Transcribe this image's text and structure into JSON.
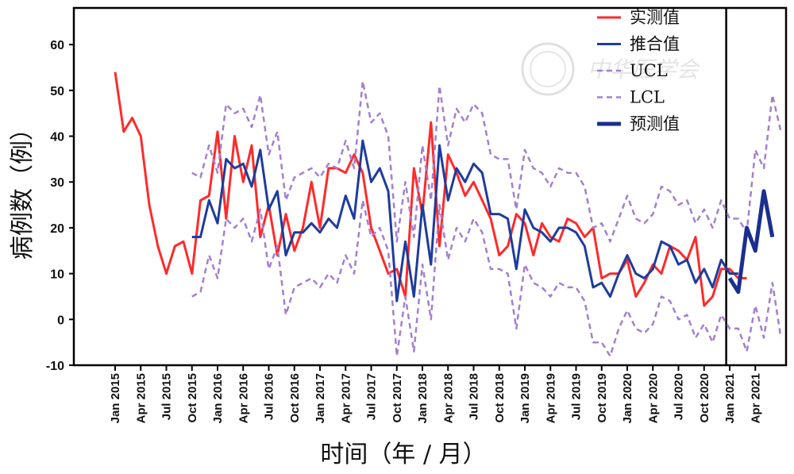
{
  "chart_data": {
    "type": "line",
    "title": "",
    "xlabel": "时间（年 / 月）",
    "ylabel": "病例数（例）",
    "ylim": [
      -10,
      68
    ],
    "yticks": [
      -10,
      0,
      10,
      20,
      30,
      40,
      50,
      60
    ],
    "x_start": "2015-01",
    "xticks": [
      "Jan 2015",
      "Apr 2015",
      "Jul 2015",
      "Oct 2015",
      "Jan 2016",
      "Apr 2016",
      "Jul 2016",
      "Oct 2016",
      "Jan 2017",
      "Apr 2017",
      "Jul 2017",
      "Oct 2017",
      "Jan 2018",
      "Apr 2018",
      "Jul 2018",
      "Oct 2018",
      "Jan 2019",
      "Apr 2019",
      "Jul 2019",
      "Oct 2019",
      "Jan 2020",
      "Apr 2020",
      "Jul 2020",
      "Oct 2020",
      "Jan 2021",
      "Apr 2021"
    ],
    "forecast_divider": "Dec 2020",
    "legend_position": "top-right",
    "grid": false,
    "watermark": "中华医学会",
    "series": [
      {
        "name": "实测值",
        "color": "#ff2a2a",
        "style": "solid",
        "width": 3,
        "start": "2015-01",
        "values": [
          54,
          41,
          44,
          40,
          25,
          16,
          10,
          16,
          17,
          10,
          26,
          27,
          41,
          22,
          40,
          30,
          38,
          18,
          25,
          14,
          23,
          15,
          20,
          30,
          20,
          33,
          33,
          32,
          36,
          32,
          20,
          15,
          10,
          11,
          5,
          33,
          23,
          43,
          16,
          36,
          32,
          27,
          30,
          26,
          22,
          14,
          16,
          23,
          21,
          14,
          21,
          18,
          17,
          22,
          21,
          18,
          20,
          9,
          10,
          10,
          13,
          5,
          8,
          12,
          10,
          16,
          15,
          13,
          18,
          3,
          5,
          11,
          11,
          9,
          9
        ]
      },
      {
        "name": "推合值",
        "color": "#1f3c9c",
        "style": "solid",
        "width": 3,
        "start": "2015-10",
        "values": [
          18,
          18,
          26,
          21,
          35,
          33,
          34,
          29,
          37,
          24,
          28,
          14,
          19,
          19,
          21,
          19,
          22,
          20,
          27,
          22,
          39,
          30,
          33,
          28,
          4,
          17,
          5,
          25,
          12,
          38,
          26,
          33,
          30,
          34,
          32,
          23,
          23,
          22,
          11,
          24,
          20,
          19,
          17,
          20,
          20,
          19,
          16,
          7,
          8,
          5,
          10,
          14,
          10,
          9,
          11,
          17,
          16,
          12,
          13,
          8,
          11,
          7,
          13,
          10,
          10
        ]
      },
      {
        "name": "UCL",
        "color": "#a47fcf",
        "style": "dashed",
        "width": 2.5,
        "start": "2015-10",
        "values": [
          32,
          31,
          38,
          32,
          47,
          45,
          46,
          42,
          49,
          36,
          41,
          26,
          31,
          32,
          33,
          31,
          34,
          33,
          39,
          33,
          52,
          43,
          45,
          40,
          17,
          30,
          18,
          38,
          26,
          51,
          38,
          46,
          43,
          47,
          45,
          36,
          35,
          35,
          24,
          37,
          33,
          32,
          29,
          33,
          32,
          32,
          29,
          20,
          21,
          17,
          22,
          27,
          22,
          21,
          23,
          29,
          28,
          25,
          26,
          21,
          24,
          20,
          26,
          22,
          22,
          19,
          37,
          33,
          49,
          41
        ]
      },
      {
        "name": "LCL",
        "color": "#a47fcf",
        "style": "dashed",
        "width": 2.5,
        "start": "2015-10",
        "values": [
          5,
          6,
          14,
          9,
          22,
          20,
          22,
          17,
          24,
          11,
          16,
          1,
          7,
          8,
          9,
          7,
          10,
          8,
          14,
          10,
          26,
          18,
          20,
          15,
          -8,
          5,
          -7,
          12,
          0,
          25,
          13,
          20,
          17,
          22,
          19,
          11,
          11,
          10,
          -2,
          12,
          8,
          7,
          5,
          8,
          7,
          7,
          4,
          -5,
          -5,
          -8,
          -2,
          2,
          -2,
          -3,
          -1,
          5,
          4,
          0,
          1,
          -4,
          -1,
          -5,
          1,
          -2,
          -2,
          -7,
          3,
          -4,
          8,
          -4
        ]
      },
      {
        "name": "预测值",
        "color": "#1a2f8f",
        "style": "solid",
        "width": 5,
        "start": "2021-01",
        "values": [
          9,
          6,
          20,
          15,
          28,
          18
        ]
      }
    ]
  }
}
